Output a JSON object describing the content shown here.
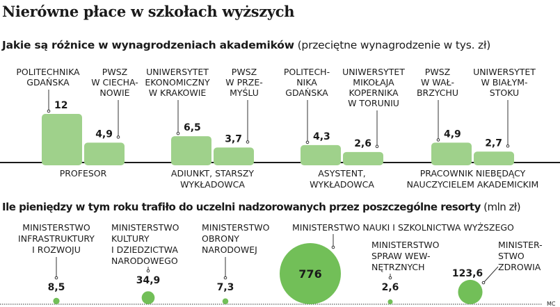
{
  "header": {
    "title": "Nierówne płace w szkołach wyższych"
  },
  "chart_data": [
    {
      "type": "bar",
      "title": "Jakie są różnice w wynagrodzeniach akademików",
      "subtitle": "(przeciętne wynagrodzenie w tys. zł)",
      "unit": "tys. zł",
      "groups": [
        {
          "category": [
            "PROFESOR"
          ],
          "bars": [
            {
              "name": [
                "POLITECHNIKA",
                "GDAŃSKA"
              ],
              "value": 12,
              "label": "12"
            },
            {
              "name": [
                "PWSZ",
                "W CIECHA-",
                "NOWIE"
              ],
              "value": 4.9,
              "label": "4,9"
            }
          ]
        },
        {
          "category": [
            "ADIUNKT, STARSZY",
            "WYKŁADOWCA"
          ],
          "bars": [
            {
              "name": [
                "UNIWERSYTET",
                "EKONOMICZNY",
                "W KRAKOWIE"
              ],
              "value": 6.5,
              "label": "6,5"
            },
            {
              "name": [
                "PWSZ",
                "W PRZE-",
                "MYŚLU"
              ],
              "value": 3.7,
              "label": "3,7"
            }
          ]
        },
        {
          "category": [
            "ASYSTENT,",
            "WYKŁADOWCA"
          ],
          "bars": [
            {
              "name": [
                "POLITECH-",
                "NIKA",
                "GDAŃSKA"
              ],
              "value": 4.3,
              "label": "4,3"
            },
            {
              "name": [
                "UNIWERSYTET",
                "MIKOŁAJA",
                "KOPERNIKA",
                "W TORUNIU"
              ],
              "value": 2.6,
              "label": "2,6"
            }
          ]
        },
        {
          "category": [
            "PRACOWNIK NIEBĘDĄCY",
            "NAUCZYCIELEM AKADEMICKIM"
          ],
          "bars": [
            {
              "name": [
                "PWSZ",
                "W WAŁ-",
                "BRZYCHU"
              ],
              "value": 4.9,
              "label": "4,9"
            },
            {
              "name": [
                "UNIWERSYTET",
                "W BIAŁYM-",
                "STOKU"
              ],
              "value": 2.7,
              "label": "2,7"
            }
          ]
        }
      ],
      "grid": false
    },
    {
      "type": "bubble",
      "title": "Ile pieniędzy w tym roku trafiło do uczelni nadzorowanych przez poszczególne resorty",
      "subtitle": "(mln zł)",
      "unit": "mln zł",
      "items": [
        {
          "name": [
            "MINISTERSTWO",
            "INFRASTRUKTURY",
            "I ROZWOJU"
          ],
          "value": 8.5,
          "label": "8,5"
        },
        {
          "name": [
            "MINISTERSTWO",
            "KULTURY",
            "I DZIEDZICTWA",
            "NARODOWEGO"
          ],
          "value": 34.9,
          "label": "34,9"
        },
        {
          "name": [
            "MINISTERSTWO",
            "OBRONY",
            "NARODOWEJ"
          ],
          "value": 7.3,
          "label": "7,3"
        },
        {
          "name": [
            "MINISTERSTWO NAUKI I SZKOLNICTWA WYŻSZEGO"
          ],
          "value": 776,
          "label": "776"
        },
        {
          "name": [
            "MINISTERSTWO",
            "SPRAW WEW-",
            "NĘTRZNYCH"
          ],
          "value": 2.6,
          "label": "2,6"
        },
        {
          "name": [
            "MINISTER-",
            "STWO",
            "ZDROWIA"
          ],
          "value": 123.6,
          "label": "123,6"
        }
      ]
    }
  ],
  "colors": {
    "bar": "#9fd18b",
    "bubble": "#72bf58",
    "text": "#1a1a1a"
  },
  "credit": "MC"
}
